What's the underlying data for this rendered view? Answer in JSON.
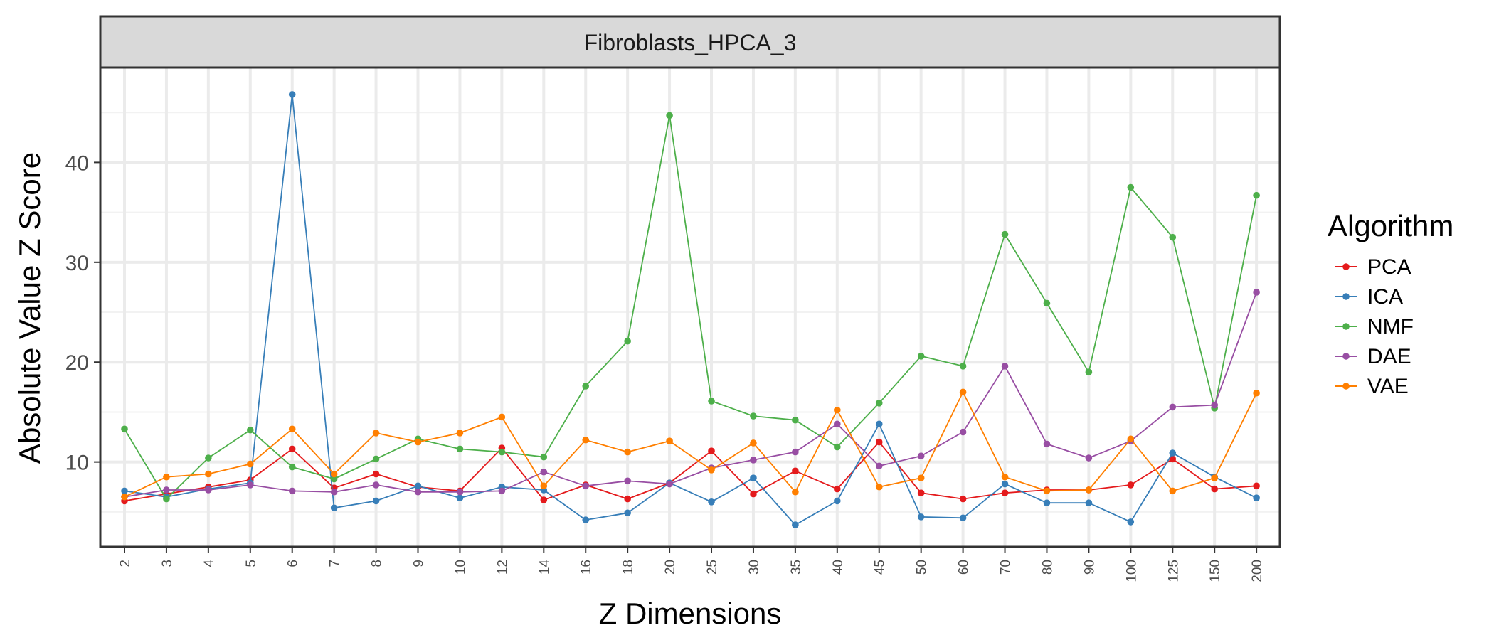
{
  "chart_data": {
    "type": "line",
    "panel_title": "Fibroblasts_HPCA_3",
    "xlabel": "Z Dimensions",
    "ylabel": "Absolute Value Z Score",
    "categories": [
      "2",
      "3",
      "4",
      "5",
      "6",
      "7",
      "8",
      "9",
      "10",
      "12",
      "14",
      "16",
      "18",
      "20",
      "25",
      "30",
      "35",
      "40",
      "45",
      "50",
      "60",
      "70",
      "80",
      "90",
      "100",
      "125",
      "150",
      "200"
    ],
    "ylim": [
      1.5,
      49.5
    ],
    "yticks": [
      10,
      20,
      30,
      40
    ],
    "grid": true,
    "legend": {
      "title": "Algorithm",
      "position": "right"
    },
    "series": [
      {
        "name": "PCA",
        "color": "#E41A1C",
        "values": [
          6.1,
          6.8,
          7.5,
          8.2,
          11.3,
          7.4,
          8.8,
          7.5,
          7.1,
          11.4,
          6.2,
          7.7,
          6.3,
          7.9,
          11.1,
          6.8,
          9.1,
          7.3,
          12.0,
          6.9,
          6.3,
          6.9,
          7.2,
          7.2,
          7.7,
          10.3,
          7.3,
          7.6
        ]
      },
      {
        "name": "ICA",
        "color": "#377EB8",
        "values": [
          7.1,
          6.5,
          7.3,
          7.9,
          46.8,
          5.4,
          6.1,
          7.6,
          6.4,
          7.5,
          7.2,
          4.2,
          4.9,
          7.9,
          6.0,
          8.4,
          3.7,
          6.1,
          13.8,
          4.5,
          4.4,
          7.8,
          5.9,
          5.9,
          4.0,
          10.9,
          8.5,
          6.4
        ]
      },
      {
        "name": "NMF",
        "color": "#4DAF4A",
        "values": [
          13.3,
          6.3,
          10.4,
          13.2,
          9.5,
          8.3,
          10.3,
          12.3,
          11.3,
          11.0,
          10.5,
          17.6,
          22.1,
          44.7,
          16.1,
          14.6,
          14.2,
          11.5,
          15.9,
          20.6,
          19.6,
          32.8,
          25.9,
          19.0,
          37.5,
          32.5,
          15.4,
          36.7
        ]
      },
      {
        "name": "DAE",
        "color": "#984EA3",
        "values": [
          6.5,
          7.2,
          7.2,
          7.7,
          7.1,
          7.0,
          7.7,
          7.0,
          7.0,
          7.1,
          9.0,
          7.6,
          8.1,
          7.8,
          9.4,
          10.2,
          11.0,
          13.8,
          9.6,
          10.6,
          13.0,
          19.6,
          11.8,
          10.4,
          12.1,
          15.5,
          15.7,
          27.0
        ]
      },
      {
        "name": "VAE",
        "color": "#FF7F00",
        "values": [
          6.5,
          8.5,
          8.8,
          9.8,
          13.3,
          8.8,
          12.9,
          12.0,
          12.9,
          14.5,
          7.6,
          12.2,
          11.0,
          12.1,
          9.2,
          11.9,
          7.0,
          15.2,
          7.5,
          8.4,
          17.0,
          8.5,
          7.1,
          7.2,
          12.3,
          7.1,
          8.4,
          16.9
        ]
      }
    ]
  }
}
